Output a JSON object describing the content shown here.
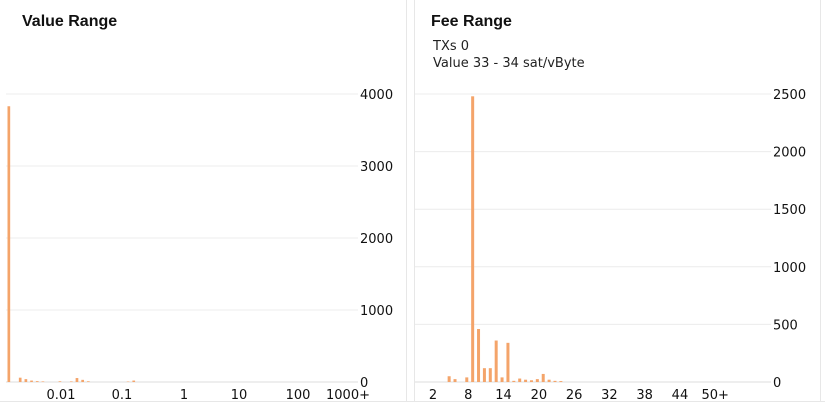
{
  "value_panel": {
    "title": "Value Range"
  },
  "fee_panel": {
    "title": "Fee Range",
    "tooltip": {
      "txs_label": "TXs",
      "txs_value": "0",
      "value_label": "Value",
      "value_range": "33 - 34 sat/vByte"
    }
  },
  "colors": {
    "bar": "#f4a46a",
    "grid": "#ececec",
    "axis": "#dddddd"
  },
  "chart_data": [
    {
      "type": "bar",
      "title": "Value Range",
      "xlabel": "",
      "ylabel": "",
      "x_scale": "log",
      "x_tick_labels": [
        "0.01",
        "0.1",
        "1",
        "10",
        "100",
        "1000+"
      ],
      "y_ticks": [
        0,
        1000,
        2000,
        3000,
        4000
      ],
      "ylim": [
        0,
        4000
      ],
      "y_axis_position": "right",
      "grid": true,
      "bins": [
        {
          "slot": 0,
          "value": 3830
        },
        {
          "slot": 2,
          "value": 60
        },
        {
          "slot": 3,
          "value": 40
        },
        {
          "slot": 4,
          "value": 20
        },
        {
          "slot": 5,
          "value": 12
        },
        {
          "slot": 6,
          "value": 8
        },
        {
          "slot": 9,
          "value": 10
        },
        {
          "slot": 11,
          "value": 8
        },
        {
          "slot": 12,
          "value": 55
        },
        {
          "slot": 13,
          "value": 30
        },
        {
          "slot": 14,
          "value": 10
        },
        {
          "slot": 21,
          "value": 6
        },
        {
          "slot": 22,
          "value": 20
        }
      ],
      "slot_count": 62
    },
    {
      "type": "bar",
      "title": "Fee Range",
      "xlabel": "",
      "ylabel": "",
      "x_tick_labels": [
        "2",
        "8",
        "14",
        "20",
        "26",
        "32",
        "38",
        "44",
        "50+"
      ],
      "x_ticks": [
        2,
        8,
        14,
        20,
        26,
        32,
        38,
        44,
        50
      ],
      "xlim": [
        0,
        51
      ],
      "y_ticks": [
        0,
        500,
        1000,
        1500,
        2000,
        2500
      ],
      "ylim": [
        0,
        2500
      ],
      "y_axis_position": "right",
      "grid": true,
      "bars": [
        {
          "x": 5,
          "value": 50
        },
        {
          "x": 6,
          "value": 25
        },
        {
          "x": 8,
          "value": 40
        },
        {
          "x": 9,
          "value": 2480
        },
        {
          "x": 10,
          "value": 460
        },
        {
          "x": 11,
          "value": 120
        },
        {
          "x": 12,
          "value": 120
        },
        {
          "x": 13,
          "value": 360
        },
        {
          "x": 14,
          "value": 40
        },
        {
          "x": 15,
          "value": 340
        },
        {
          "x": 16,
          "value": 10
        },
        {
          "x": 17,
          "value": 30
        },
        {
          "x": 18,
          "value": 20
        },
        {
          "x": 19,
          "value": 15
        },
        {
          "x": 20,
          "value": 25
        },
        {
          "x": 21,
          "value": 70
        },
        {
          "x": 22,
          "value": 20
        },
        {
          "x": 23,
          "value": 10
        },
        {
          "x": 24,
          "value": 8
        }
      ]
    }
  ]
}
